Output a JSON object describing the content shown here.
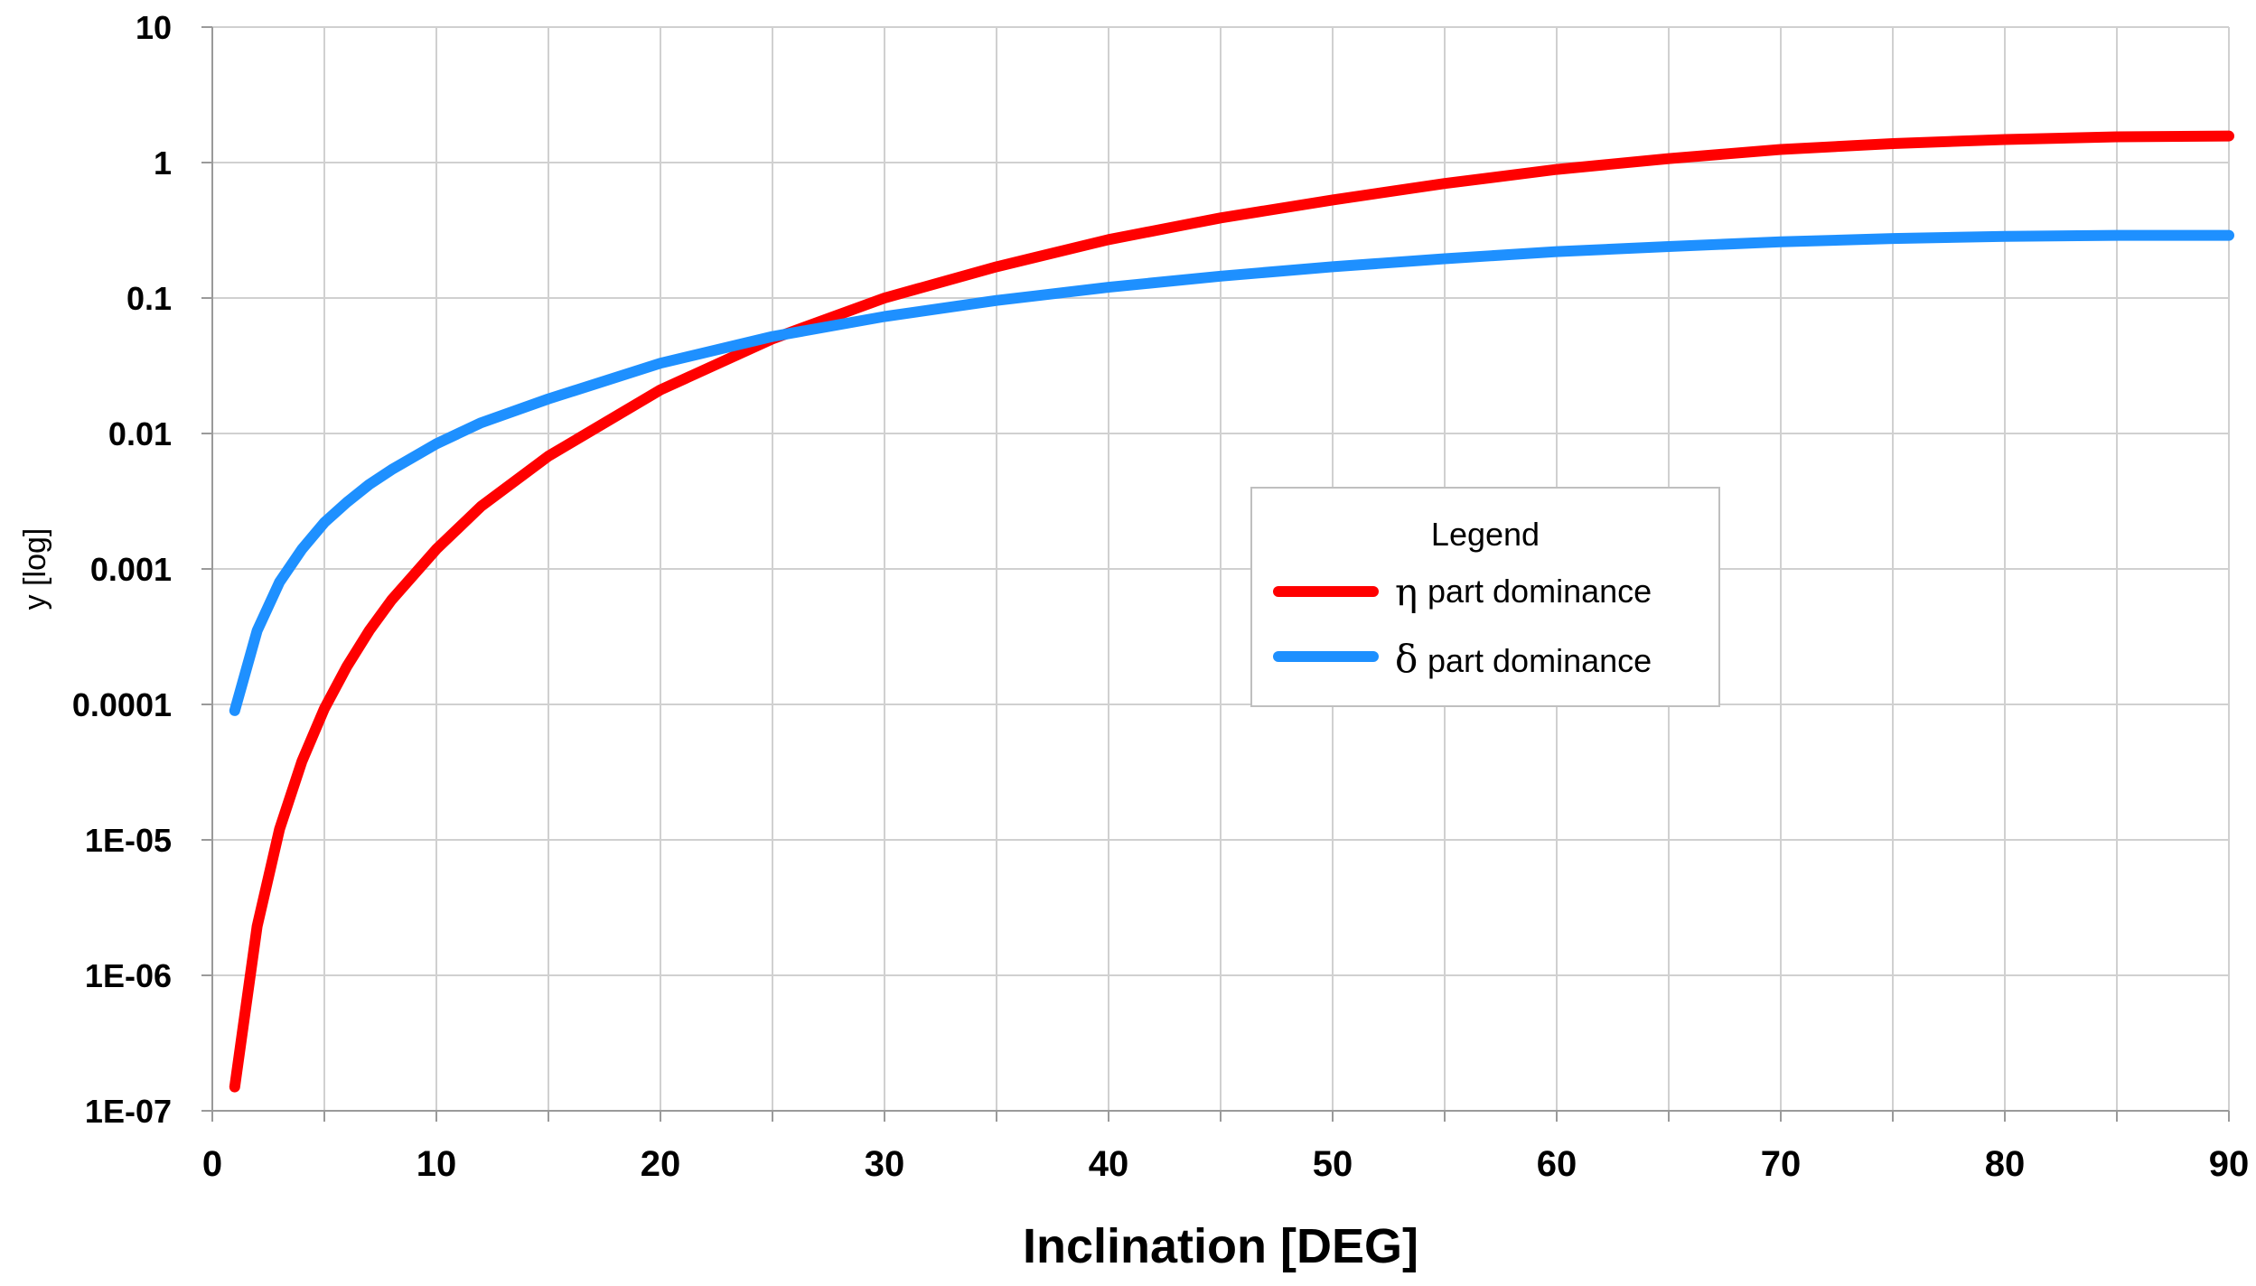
{
  "chart_data": {
    "type": "line",
    "title": "",
    "xlabel": "Inclination [DEG]",
    "ylabel": "y [log]",
    "yscale": "log",
    "xlim": [
      0,
      90
    ],
    "ylim": [
      1e-07,
      10
    ],
    "grid": true,
    "x_ticks": [
      "0",
      "10",
      "20",
      "30",
      "40",
      "50",
      "60",
      "70",
      "80",
      "90"
    ],
    "y_ticks": [
      "1E-07",
      "1E-06",
      "1E-05",
      "0.0001",
      "0.001",
      "0.01",
      "0.1",
      "1",
      "10"
    ],
    "legend": {
      "title": "Legend",
      "position": "center-right",
      "entries": [
        {
          "symbol": "η",
          "label": "part dominance",
          "color": "#ff0000"
        },
        {
          "symbol": "δ",
          "label": "part dominance",
          "color": "#1e90ff"
        }
      ]
    },
    "series": [
      {
        "name": "η part dominance",
        "color": "#ff0000",
        "x": [
          1,
          2,
          3,
          4,
          5,
          6,
          7,
          8,
          10,
          12,
          15,
          20,
          25,
          30,
          35,
          40,
          45,
          50,
          55,
          60,
          65,
          70,
          75,
          80,
          85,
          90
        ],
        "y": [
          1.5e-07,
          2.3e-06,
          1.2e-05,
          3.8e-05,
          9.3e-05,
          0.00019,
          0.00035,
          0.00059,
          0.0014,
          0.0029,
          0.0068,
          0.021,
          0.05,
          0.1,
          0.17,
          0.27,
          0.39,
          0.53,
          0.7,
          0.89,
          1.07,
          1.25,
          1.38,
          1.48,
          1.55,
          1.57
        ]
      },
      {
        "name": "δ part dominance",
        "color": "#1e90ff",
        "x": [
          1,
          2,
          3,
          4,
          5,
          6,
          7,
          8,
          10,
          12,
          15,
          20,
          25,
          30,
          35,
          40,
          45,
          50,
          55,
          60,
          65,
          70,
          75,
          80,
          85,
          90
        ],
        "y": [
          9e-05,
          0.00035,
          0.0008,
          0.0014,
          0.0022,
          0.0031,
          0.0042,
          0.0054,
          0.0084,
          0.012,
          0.018,
          0.033,
          0.052,
          0.073,
          0.096,
          0.12,
          0.145,
          0.17,
          0.195,
          0.22,
          0.24,
          0.26,
          0.275,
          0.285,
          0.29,
          0.29
        ]
      }
    ]
  }
}
